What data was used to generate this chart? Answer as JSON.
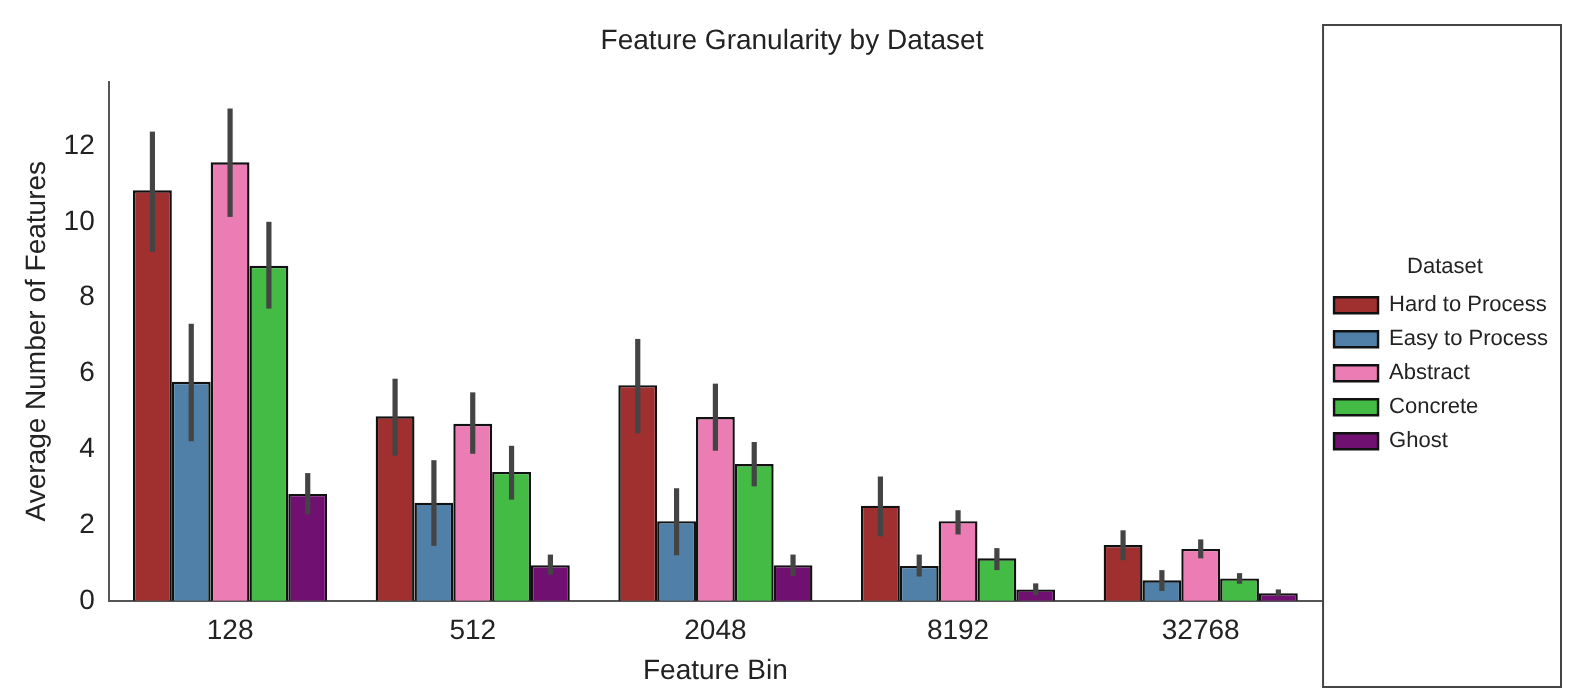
{
  "chart_data": {
    "type": "bar",
    "title": "Feature Granularity by Dataset",
    "xlabel": "Feature Bin",
    "ylabel": "Average Number of Features",
    "legend_title": "Dataset",
    "legend": "right",
    "grid": false,
    "categories": [
      "128",
      "512",
      "2048",
      "8192",
      "32768"
    ],
    "ylim": [
      0,
      13.7
    ],
    "yticks": [
      0,
      2,
      4,
      6,
      8,
      10,
      12
    ],
    "series": [
      {
        "name": "Hard to Process",
        "color": "#a03030",
        "values": [
          10.83,
          4.87,
          5.69,
          2.51,
          1.47
        ],
        "errors": [
          [
            9.21,
            12.38
          ],
          [
            3.83,
            5.86
          ],
          [
            4.42,
            6.91
          ],
          [
            1.7,
            3.28
          ],
          [
            1.07,
            1.86
          ]
        ]
      },
      {
        "name": "Easy to Process",
        "color": "#5080a8",
        "values": [
          5.78,
          2.59,
          2.1,
          0.92,
          0.54
        ],
        "errors": [
          [
            4.21,
            7.31
          ],
          [
            1.45,
            3.71
          ],
          [
            1.2,
            2.97
          ],
          [
            0.64,
            1.22
          ],
          [
            0.26,
            0.81
          ]
        ]
      },
      {
        "name": "Abstract",
        "color": "#ec7cb4",
        "values": [
          11.57,
          4.67,
          4.85,
          2.1,
          1.37
        ],
        "errors": [
          [
            10.13,
            12.99
          ],
          [
            3.88,
            5.5
          ],
          [
            3.96,
            5.73
          ],
          [
            1.75,
            2.39
          ],
          [
            1.12,
            1.62
          ]
        ]
      },
      {
        "name": "Concrete",
        "color": "#44bb44",
        "values": [
          8.84,
          3.4,
          3.61,
          1.12,
          0.59
        ],
        "errors": [
          [
            7.71,
            10.0
          ],
          [
            2.67,
            4.09
          ],
          [
            3.02,
            4.19
          ],
          [
            0.81,
            1.39
          ],
          [
            0.45,
            0.73
          ]
        ]
      },
      {
        "name": "Ghost",
        "color": "#701070",
        "values": [
          2.82,
          0.94,
          0.94,
          0.3,
          0.2
        ],
        "errors": [
          [
            2.28,
            3.37
          ],
          [
            0.69,
            1.22
          ],
          [
            0.66,
            1.22
          ],
          [
            0.15,
            0.46
          ],
          [
            0.12,
            0.3
          ]
        ]
      }
    ]
  }
}
